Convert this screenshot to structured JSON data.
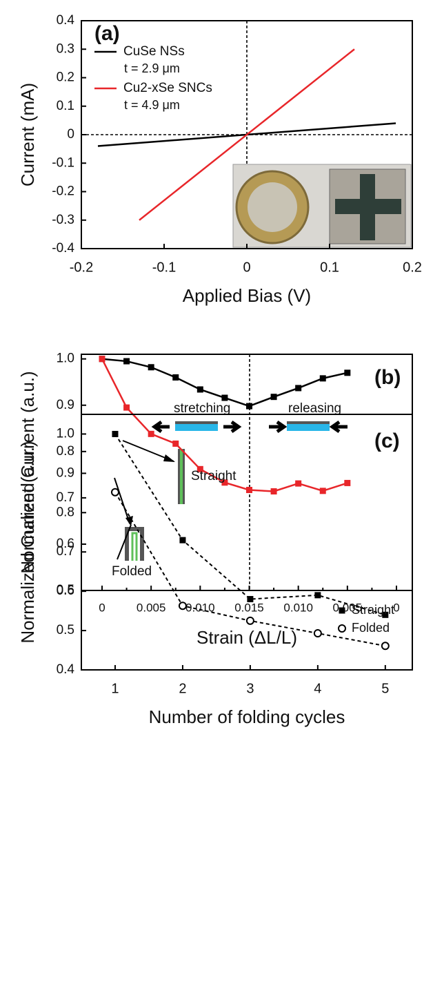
{
  "chart_data": [
    {
      "type": "line",
      "x_label": "Applied Bias (V)",
      "y_label": "Current (mA)",
      "annotations": [
        "(a)",
        "t = 2.9 μm",
        "t = 4.9 μm"
      ],
      "xlim": [
        -0.2,
        0.2
      ],
      "xticks": [
        -0.2,
        -0.1,
        0,
        0.1,
        0.2
      ],
      "ylim": [
        -0.4,
        0.4
      ],
      "yticks": [
        -0.4,
        -0.3,
        -0.2,
        -0.1,
        0,
        0.1,
        0.2,
        0.3,
        0.4
      ],
      "legend": "upper left",
      "series": [
        {
          "name": "CuSe NSs",
          "color": "#000000",
          "x": [
            -0.18,
            0.18
          ],
          "values": [
            -0.04,
            0.04
          ]
        },
        {
          "name": "Cu2-xSe SNCs",
          "color": "#e8262a",
          "x": [
            -0.13,
            0.13
          ],
          "values": [
            -0.3,
            0.3
          ]
        }
      ]
    },
    {
      "type": "line",
      "x_label": "Strain (ΔL/L)",
      "y_label": "Normalized Current (a.u.)",
      "annotations": [
        "(b)",
        "stretching",
        "releasing"
      ],
      "categories": [
        "0",
        null,
        "0.005",
        null,
        "0.010",
        null,
        "0.015",
        null,
        "0.010",
        null,
        "0.005",
        null,
        "0"
      ],
      "ylim": [
        0.5,
        1.01
      ],
      "yticks": [
        0.5,
        0.6,
        0.7,
        0.8,
        0.9,
        {
          "value": 1,
          "label": "1.0"
        }
      ],
      "marker": "square",
      "series": [
        {
          "color": "#000000",
          "values": [
            1.0,
            0.995,
            0.982,
            0.96,
            0.934,
            0.916,
            0.898,
            0.918,
            0.937,
            0.958,
            0.97,
            null,
            null
          ]
        },
        {
          "color": "#e8262a",
          "values": [
            1.0,
            0.895,
            0.838,
            0.817,
            0.762,
            0.733,
            0.717,
            0.714,
            0.731,
            0.715,
            0.732,
            null,
            null
          ]
        }
      ]
    },
    {
      "type": "line",
      "x_label": "Number of folding cycles",
      "y_label": "Normalized Current (a.u.)",
      "annotations": [
        "(c)",
        "Straight",
        "Folded"
      ],
      "x": [
        1,
        2,
        3,
        4,
        5
      ],
      "xlim": [
        0.5,
        5.4
      ],
      "xticks": [
        1,
        2,
        3,
        4,
        5
      ],
      "ylim": [
        0.4,
        1.05
      ],
      "yticks": [
        0.4,
        0.5,
        0.6,
        0.7,
        0.8,
        0.9,
        {
          "value": 1,
          "label": "1.0"
        }
      ],
      "legend": "upper right",
      "line_style": "dashed",
      "series": [
        {
          "name": "Straight",
          "color": "#000000",
          "marker": "square",
          "values": [
            1.0,
            0.73,
            0.58,
            0.59,
            0.54
          ]
        },
        {
          "name": "Folded",
          "color": "#000000",
          "marker": "circle-open",
          "values": [
            0.852,
            0.563,
            0.525,
            0.493,
            0.461
          ]
        }
      ]
    }
  ]
}
